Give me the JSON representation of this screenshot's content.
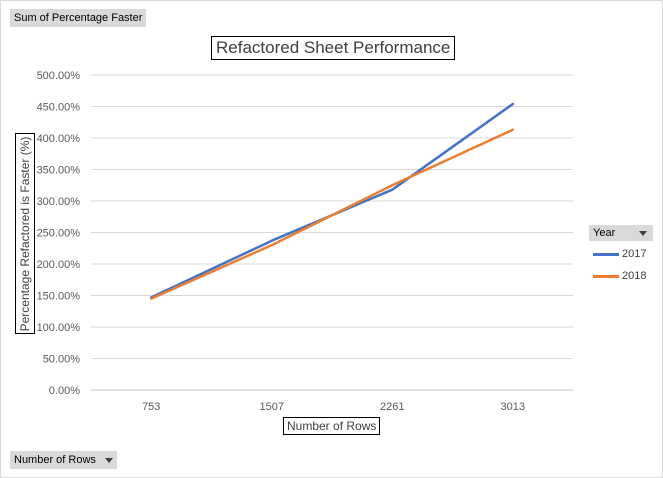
{
  "pivot": {
    "value_field_label": "Sum of Percentage Faster",
    "axis_field_label": "Number of Rows",
    "legend_field_label": "Year"
  },
  "chart_data": {
    "type": "line",
    "title": "Refactored Sheet Performance",
    "xlabel": "Number of Rows",
    "ylabel": "Percentage Refactored is Faster (%)",
    "categories": [
      "753",
      "1507",
      "2261",
      "3013"
    ],
    "yticks": [
      "0.00%",
      "50.00%",
      "100.00%",
      "150.00%",
      "200.00%",
      "250.00%",
      "300.00%",
      "350.00%",
      "400.00%",
      "450.00%",
      "500.00%"
    ],
    "ylim": [
      0,
      500
    ],
    "grid": true,
    "legend": "right",
    "series": [
      {
        "name": "2017",
        "values": [
          147,
          237,
          318,
          454
        ],
        "color": "#4472c4"
      },
      {
        "name": "2018",
        "values": [
          145,
          230,
          325,
          413
        ],
        "color": "#ed7d31"
      }
    ]
  }
}
